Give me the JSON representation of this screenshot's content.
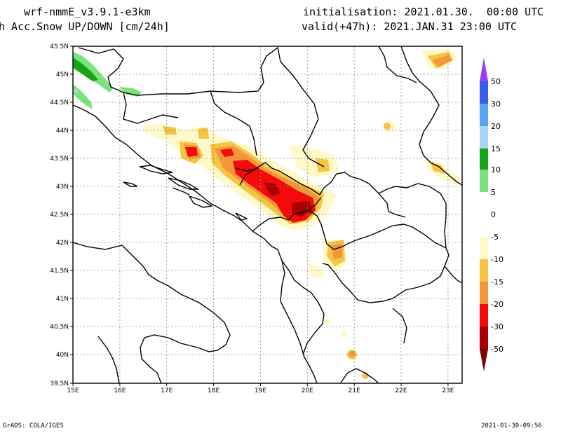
{
  "header": {
    "model": "wrf-nmmE_v3.9.1-e3km",
    "field": "h Acc.Snow UP/DOWN [cm/24h]",
    "init": "initialisation: 2021.01.30.  00:00 UTC",
    "valid": "valid(+47h): 2021.JAN.31 23:00 UTC"
  },
  "map": {
    "lon_ticks": [
      "15E",
      "16E",
      "17E",
      "18E",
      "19E",
      "20E",
      "21E",
      "22E",
      "23E"
    ],
    "lat_ticks": [
      "45.5N",
      "45N",
      "44.5N",
      "44N",
      "43.5N",
      "43N",
      "42.5N",
      "42N",
      "41.5N",
      "41N",
      "40.5N",
      "40N",
      "39.5N"
    ],
    "lon_range": [
      15,
      23.3
    ],
    "lat_range": [
      39.5,
      45.5
    ],
    "grid": true
  },
  "colorbar": {
    "labels": [
      "50",
      "30",
      "20",
      "15",
      "10",
      "5",
      "0",
      "-5",
      "-10",
      "-15",
      "-20",
      "-30",
      "-50"
    ],
    "colors_top_to_bottom": [
      "#7b3df5",
      "#3c5cf0",
      "#55a5f0",
      "#a5d8f7",
      "#17a317",
      "#7be37b",
      "#ffffff",
      "#ffffff",
      "#fff8c8",
      "#f5c542",
      "#f5963c",
      "#f50a0a",
      "#a80000"
    ]
  },
  "footer": {
    "left": "GrADS: COLA/IGES",
    "right": "2021-01-30-09:56"
  }
}
